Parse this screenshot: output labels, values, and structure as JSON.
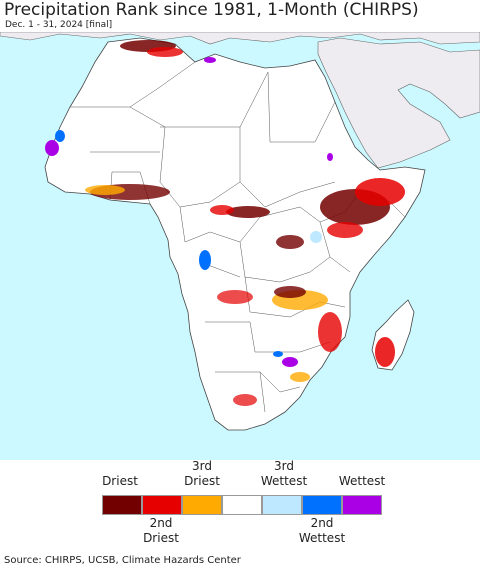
{
  "title": "Precipitation Rank since 1981, 1-Month (CHIRPS)",
  "subtitle": "Dec. 1 - 31, 2024 [final]",
  "colors": {
    "ocean": "#ccf9ff",
    "land_outside": "#eeecf1",
    "land": "#ffffff",
    "border": "#444444"
  },
  "legend": {
    "top_labels": [
      {
        "line1": "Driest",
        "line2": ""
      },
      {
        "line1": "3rd",
        "line2": "Driest"
      },
      {
        "line1": "3rd",
        "line2": "Wettest"
      },
      {
        "line1": "Wettest",
        "line2": ""
      }
    ],
    "bottom_labels": [
      {
        "line1": "2nd",
        "line2": "Driest"
      },
      {
        "line1": "2nd",
        "line2": "Wettest"
      }
    ],
    "classes": [
      {
        "name": "Driest",
        "color": "#730000"
      },
      {
        "name": "2nd Driest",
        "color": "#e60000"
      },
      {
        "name": "3rd Driest",
        "color": "#ffaa00"
      },
      {
        "name": "Normal",
        "color": "#ffffff"
      },
      {
        "name": "3rd Wettest",
        "color": "#bee8ff"
      },
      {
        "name": "2nd Wettest",
        "color": "#0070ff"
      },
      {
        "name": "Wettest",
        "color": "#a900e6"
      }
    ]
  },
  "source": "Source: CHIRPS, UCSB, Climate Hazards Center"
}
